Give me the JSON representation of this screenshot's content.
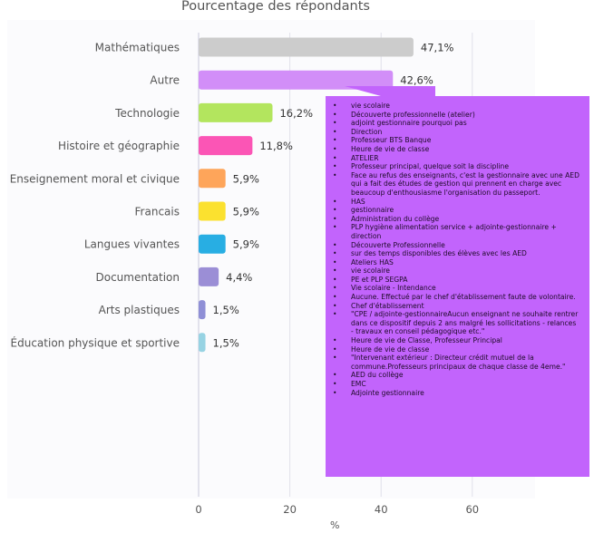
{
  "chart_data": {
    "type": "bar",
    "orientation": "horizontal",
    "title": "Pourcentage des répondants",
    "xlabel": "%",
    "ylabel": "",
    "xlim": [
      0,
      74
    ],
    "x_ticks": [
      0,
      20,
      40,
      60
    ],
    "grid": true,
    "categories": [
      "Mathématiques",
      "Autre",
      "Technologie",
      "Histoire et géographie",
      "Enseignement moral et civique",
      "Francais",
      "Langues vivantes",
      "Documentation",
      "Arts plastiques",
      "Éducation physique et sportive"
    ],
    "values": [
      47.1,
      42.6,
      16.2,
      11.8,
      5.9,
      5.9,
      5.9,
      4.4,
      1.5,
      1.5
    ],
    "value_labels": [
      "47,1%",
      "42,6%",
      "16,2%",
      "11,8%",
      "5,9%",
      "5,9%",
      "5,9%",
      "4,4%",
      "1,5%",
      "1,5%"
    ],
    "colors": [
      "#cccccc",
      "#d28ef8",
      "#b3e55e",
      "#fb55b5",
      "#fea55a",
      "#fbe12f",
      "#28aee3",
      "#9b8ed6",
      "#8f8fd6",
      "#97d3e3"
    ]
  },
  "tooltip": {
    "category": "Autre",
    "items": [
      "vie scolaire",
      "Découverte professionnelle (atelier)",
      "adjoint gestionnaire pourquoi pas",
      "Direction",
      "Professeur BTS Banque",
      "Heure de vie de classe",
      "ATELIER",
      "Professeur principal, quelque soit la discipline",
      "Face au refus des enseignants, c'est la gestionnaire avec une AED qui a fait des études de gestion qui prennent en charge avec beaucoup d'enthousiasme l'organisation du passeport.",
      "HAS",
      "gestionnaire",
      "Administration du collège",
      "PLP hygiène alimentation service + adjointe-gestionnaire + direction",
      "Découverte Professionnelle",
      "sur des temps disponibles des élèves avec les AED",
      "Ateliers HAS",
      "vie scolaire",
      "PE et PLP SEGPA",
      "Vie scolaire - Intendance",
      "Aucune. Effectué par le chef d'établissement faute de volontaire.",
      "Chef d'établissement",
      "\"CPE / adjointe-gestionnaireAucun enseignant ne souhaite rentrer dans ce dispositif depuis 2 ans malgré les sollicitations - relances - travaux en conseil pédagogique etc.\"",
      "Heure de vie de Classe, Professeur Principal",
      "Heure de vie de classe",
      "\"Intervenant extérieur : Directeur crédit mutuel de la commune.Professeurs principaux de chaque classe de 4eme.\"",
      "AED du collège",
      "EMC",
      "Adjointe gestionnaire"
    ]
  }
}
